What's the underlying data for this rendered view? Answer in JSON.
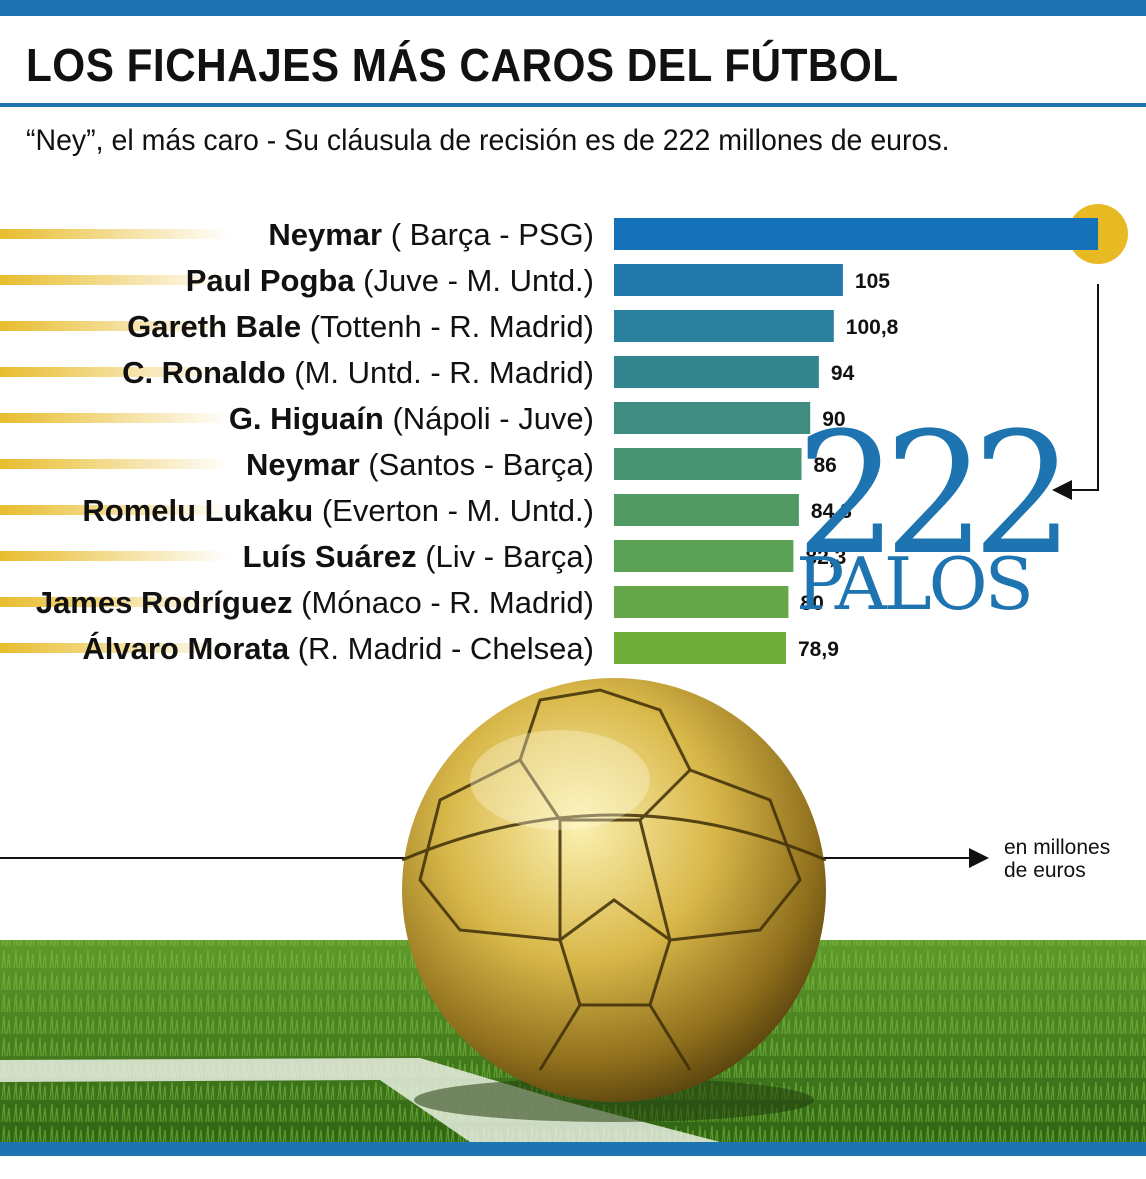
{
  "title": "LOS FICHAJES MÁS CAROS DEL FÚTBOL",
  "subtitle": "“Ney”, el más caro - Su cláusula de recisión es de 222 millones de euros.",
  "highlight": {
    "number": "222",
    "word": "PALOS"
  },
  "unit_note": [
    "en millones",
    "de euros"
  ],
  "colors": {
    "brand_blue": "#1d74b0",
    "gold": "#e7b923",
    "bar_gradient_start": "#1672b8",
    "bar_gradient_end": "#6fae3a"
  },
  "chart_data": {
    "type": "bar",
    "orientation": "horizontal",
    "categories": [
      {
        "player": "Neymar",
        "transfer": "( Barça - PSG)"
      },
      {
        "player": "Paul Pogba",
        "transfer": "(Juve - M. Untd.)"
      },
      {
        "player": "Gareth Bale",
        "transfer": "(Tottenh - R. Madrid)"
      },
      {
        "player": "C. Ronaldo",
        "transfer": "(M. Untd. - R. Madrid)"
      },
      {
        "player": "G. Higuaín",
        "transfer": "(Nápoli - Juve)"
      },
      {
        "player": "Neymar",
        "transfer": "(Santos -  Barça)"
      },
      {
        "player": "Romelu Lukaku",
        "transfer": "(Everton - M. Untd.)"
      },
      {
        "player": "Luís Suárez",
        "transfer": "(Liv -  Barça)"
      },
      {
        "player": "James Rodríguez",
        "transfer": "(Mónaco - R. Madrid)"
      },
      {
        "player": "Álvaro Morata",
        "transfer": "(R. Madrid - Chelsea)"
      }
    ],
    "values": [
      222,
      105,
      100.8,
      94,
      90,
      86,
      84.8,
      82.3,
      80,
      78.9
    ],
    "value_labels": [
      "",
      "105",
      "100,8",
      "94",
      "90",
      "86",
      "84,8",
      "82,3",
      "80",
      "78,9"
    ],
    "xlim": [
      0,
      222
    ],
    "grid": false,
    "legend": "none"
  }
}
